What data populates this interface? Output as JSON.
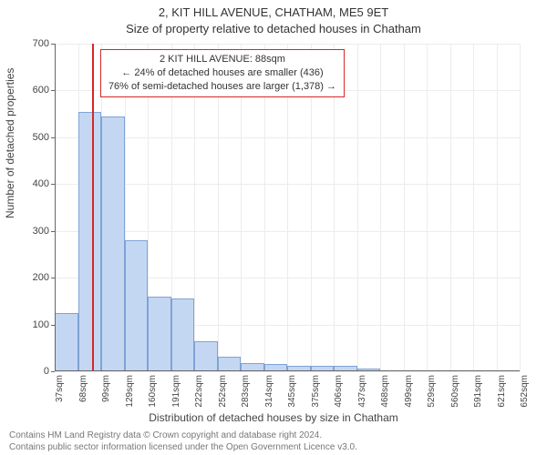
{
  "titles": {
    "address": "2, KIT HILL AVENUE, CHATHAM, ME5 9ET",
    "subtitle": "Size of property relative to detached houses in Chatham",
    "ylabel": "Number of detached properties",
    "xlabel": "Distribution of detached houses by size in Chatham"
  },
  "chart": {
    "type": "histogram",
    "x_categories": [
      "37sqm",
      "68sqm",
      "99sqm",
      "129sqm",
      "160sqm",
      "191sqm",
      "222sqm",
      "252sqm",
      "283sqm",
      "314sqm",
      "345sqm",
      "375sqm",
      "406sqm",
      "437sqm",
      "468sqm",
      "499sqm",
      "529sqm",
      "560sqm",
      "591sqm",
      "621sqm",
      "652sqm"
    ],
    "values": [
      125,
      555,
      545,
      280,
      160,
      155,
      65,
      32,
      18,
      15,
      12,
      12,
      12,
      5,
      0,
      0,
      0,
      0,
      0,
      0
    ],
    "ylim": [
      0,
      700
    ],
    "ytick_step": 100,
    "bar_fill": "#c4d7f2",
    "bar_stroke": "#7ea3d6",
    "background_color": "#ffffff",
    "grid_color": "#ececec",
    "axis_color": "#666666",
    "bar_width_ratio": 1.0,
    "marker_value": 88,
    "marker_color": "#d62728",
    "title_fontsize": 13,
    "label_fontsize": 12,
    "tick_fontsize": 11
  },
  "annotation": {
    "border_color": "#d62728",
    "lines": [
      "2 KIT HILL AVENUE: 88sqm",
      "← 24% of detached houses are smaller (436)",
      "76% of semi-detached houses are larger (1,378) →"
    ]
  },
  "footer": {
    "line1": "Contains HM Land Registry data © Crown copyright and database right 2024.",
    "line2": "Contains public sector information licensed under the Open Government Licence v3.0."
  }
}
